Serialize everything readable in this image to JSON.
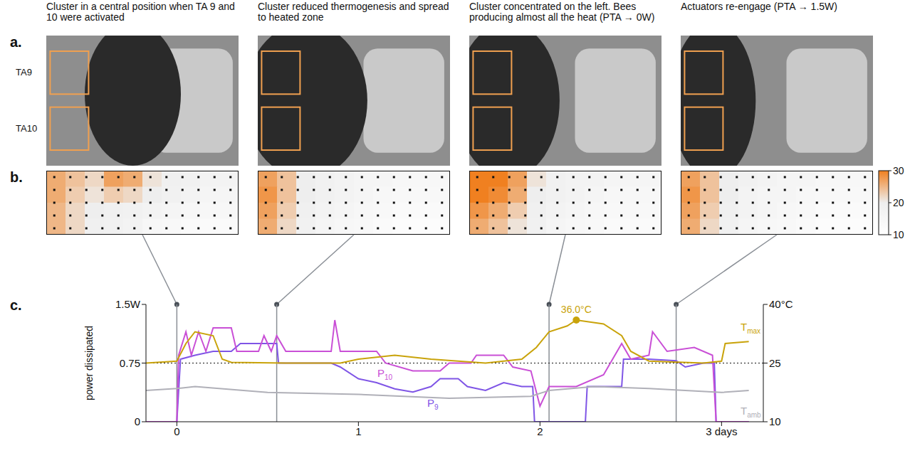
{
  "panel_letters": [
    "a.",
    "b.",
    "c."
  ],
  "panel_titles": [
    "Cluster in a central position when TA 9 and 10 were activated",
    "Cluster reduced thermogenesis and spread to heated zone",
    "Cluster concentrated on the left. Bees producing almost all the heat (PTA → 0W)",
    "Actuators re-engage (PTA → 1.5W)"
  ],
  "photo_labels": [
    "TA9",
    "TA10"
  ],
  "heatmaps": [
    {
      "cells": [
        [
          26,
          24,
          22,
          27,
          26,
          21,
          19,
          18,
          17,
          17
        ],
        [
          26,
          23,
          21,
          23,
          22,
          20,
          18,
          17,
          16,
          16
        ],
        [
          25,
          22,
          20,
          19,
          18,
          17,
          16,
          15,
          15,
          15
        ],
        [
          25,
          22,
          19,
          18,
          17,
          15,
          14,
          13,
          13,
          13
        ]
      ]
    },
    {
      "cells": [
        [
          27,
          24,
          20,
          18,
          17,
          16,
          16,
          15,
          15,
          15
        ],
        [
          28,
          24,
          20,
          18,
          17,
          16,
          15,
          14,
          14,
          14
        ],
        [
          27,
          23,
          19,
          17,
          16,
          15,
          14,
          13,
          13,
          13
        ],
        [
          26,
          22,
          18,
          16,
          15,
          14,
          13,
          12,
          12,
          12
        ]
      ]
    },
    {
      "cells": [
        [
          30,
          30,
          27,
          21,
          18,
          17,
          17,
          16,
          16,
          16
        ],
        [
          30,
          29,
          26,
          20,
          18,
          17,
          16,
          15,
          15,
          15
        ],
        [
          28,
          26,
          23,
          19,
          17,
          16,
          15,
          14,
          14,
          14
        ],
        [
          26,
          24,
          21,
          18,
          16,
          15,
          14,
          13,
          13,
          13
        ]
      ]
    },
    {
      "cells": [
        [
          27,
          24,
          20,
          18,
          17,
          16,
          16,
          15,
          15,
          15
        ],
        [
          28,
          24,
          20,
          17,
          16,
          16,
          15,
          14,
          14,
          14
        ],
        [
          27,
          23,
          19,
          17,
          16,
          15,
          14,
          13,
          13,
          13
        ],
        [
          26,
          22,
          18,
          16,
          15,
          14,
          13,
          12,
          12,
          12
        ]
      ]
    }
  ],
  "colorbar": {
    "range": [
      10,
      30
    ],
    "ticks": [
      10,
      20,
      30
    ]
  },
  "chart_data": {
    "type": "line",
    "y_label": "power dissipated",
    "xlim": [
      -0.17,
      3.23
    ],
    "xticks": [
      0,
      1,
      2,
      {
        "value": 3,
        "label": "3 days"
      }
    ],
    "ylim": [
      0,
      1.5
    ],
    "yticks": [
      0,
      0.75,
      {
        "value": 1.5,
        "label": "1.5W"
      }
    ],
    "y2lim": [
      10,
      40
    ],
    "y2ticks": [
      10,
      25,
      {
        "value": 40,
        "label": "40°C"
      }
    ],
    "snapshot_x": [
      0,
      0.55,
      2.05,
      2.75
    ],
    "reference_lines": [
      {
        "axis": "y2",
        "value": 25,
        "line_style": "dotted"
      }
    ],
    "annotation": {
      "text": "36.0°C",
      "x": 2.2,
      "y": 36,
      "axis": "y2"
    },
    "series": [
      {
        "name": "P9",
        "color": "#7f55e6",
        "x": [
          -0.17,
          0,
          0.02,
          0.1,
          0.2,
          0.3,
          0.35,
          0.5,
          0.55,
          0.56,
          0.7,
          0.85,
          0.9,
          1.0,
          1.1,
          1.2,
          1.3,
          1.4,
          1.45,
          1.55,
          1.6,
          1.7,
          1.8,
          1.9,
          1.96,
          1.97,
          2.25,
          2.26,
          2.45,
          2.46,
          2.6,
          2.75,
          2.8,
          2.9,
          2.96,
          2.97,
          3.15
        ],
        "values": [
          0,
          0,
          0.8,
          0.85,
          0.9,
          0.9,
          1.0,
          1.0,
          1.0,
          0.75,
          0.75,
          0.75,
          0.7,
          0.55,
          0.5,
          0.42,
          0.38,
          0.45,
          0.55,
          0.55,
          0.45,
          0.4,
          0.5,
          0.45,
          0.45,
          0,
          0,
          0.45,
          0.45,
          0.8,
          0.8,
          0.78,
          0.7,
          0.75,
          0.75,
          0,
          0
        ]
      },
      {
        "name": "P10",
        "color": "#c94fd6",
        "x": [
          -0.17,
          0,
          0.01,
          0.05,
          0.08,
          0.12,
          0.16,
          0.2,
          0.25,
          0.3,
          0.33,
          0.45,
          0.48,
          0.52,
          0.55,
          0.6,
          0.85,
          0.87,
          0.9,
          0.92,
          1.1,
          1.15,
          1.3,
          1.45,
          1.5,
          1.62,
          1.65,
          1.8,
          1.85,
          1.95,
          2.0,
          2.05,
          2.2,
          2.35,
          2.45,
          2.5,
          2.6,
          2.62,
          2.7,
          2.85,
          2.95,
          2.97,
          3.15
        ],
        "values": [
          0,
          0,
          0.85,
          1.15,
          0.85,
          1.15,
          0.9,
          1.2,
          1.2,
          1.2,
          0.9,
          0.9,
          1.1,
          0.9,
          1.1,
          0.9,
          0.9,
          1.3,
          0.9,
          0.9,
          0.9,
          0.75,
          0.65,
          0.65,
          0.75,
          0.75,
          0.85,
          0.85,
          0.7,
          0.65,
          0.2,
          0.45,
          0.45,
          0.6,
          1.0,
          0.8,
          0.85,
          1.15,
          0.9,
          0.95,
          0.85,
          0,
          0
        ]
      },
      {
        "name": "Tmax",
        "color": "#c9a30a",
        "axis": "y2",
        "x": [
          -0.17,
          0,
          0.05,
          0.1,
          0.2,
          0.25,
          0.3,
          0.6,
          0.9,
          1.0,
          1.2,
          1.4,
          1.7,
          1.9,
          1.98,
          2.05,
          2.15,
          2.2,
          2.35,
          2.45,
          2.5,
          2.6,
          2.9,
          3.0,
          3.02,
          3.15
        ],
        "values": [
          25,
          25.5,
          30,
          33,
          32,
          26,
          25.2,
          25,
          25,
          26,
          27,
          26,
          25,
          26,
          29,
          33,
          34.5,
          36,
          35,
          32,
          28,
          25.5,
          25,
          25.5,
          30,
          30.5
        ]
      },
      {
        "name": "Tamb",
        "color": "#b0b0b8",
        "axis": "y2",
        "x": [
          -0.17,
          0,
          0.1,
          0.5,
          1.0,
          1.5,
          1.95,
          2.05,
          2.3,
          2.6,
          3.0,
          3.15
        ],
        "values": [
          18,
          18.5,
          19,
          17.5,
          17,
          16,
          16.5,
          18,
          19,
          18.5,
          17.5,
          18
        ]
      }
    ]
  }
}
